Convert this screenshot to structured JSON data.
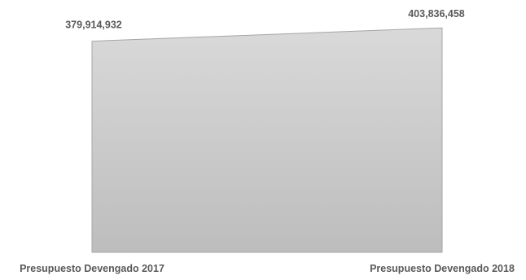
{
  "chart_data": {
    "type": "area",
    "categories": [
      "Presupuesto Devengado 2017",
      "Presupuesto Devengado 2018"
    ],
    "series": [
      {
        "values": [
          379914932,
          403836458
        ],
        "data_labels": [
          "379,914,932",
          "403,836,458"
        ],
        "color": "#c4c4c4"
      }
    ],
    "title": "",
    "xlabel": "",
    "ylabel": "",
    "ylim": [
      0,
      410000000
    ],
    "grid": false,
    "legend": "none"
  },
  "colors": {
    "area_top": "#d9d9d9",
    "area_bottom": "#bdbdbd",
    "area_stroke": "#a6a6a6",
    "text": "#595959"
  }
}
